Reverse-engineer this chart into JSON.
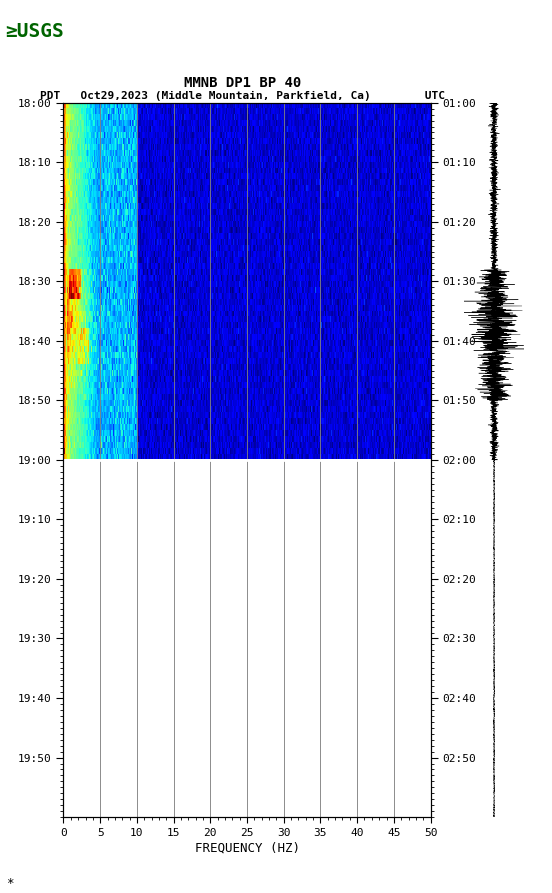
{
  "title_line1": "MMNB DP1 BP 40",
  "title_line2": "PDT   Oct29,2023 (Middle Mountain, Parkfield, Ca)        UTC",
  "xlabel": "FREQUENCY (HZ)",
  "freq_min": 0,
  "freq_max": 50,
  "freq_ticks": [
    0,
    5,
    10,
    15,
    20,
    25,
    30,
    35,
    40,
    45,
    50
  ],
  "time_left_labels": [
    "18:00",
    "18:10",
    "18:20",
    "18:30",
    "18:40",
    "18:50",
    "19:00",
    "19:10",
    "19:20",
    "19:30",
    "19:40",
    "19:50"
  ],
  "time_right_labels": [
    "01:00",
    "01:10",
    "01:20",
    "01:30",
    "01:40",
    "01:50",
    "02:00",
    "02:10",
    "02:20",
    "02:30",
    "02:40",
    "02:50"
  ],
  "n_time_steps": 120,
  "n_freq_steps": 500,
  "vertical_grid_freqs": [
    5,
    10,
    15,
    20,
    25,
    30,
    35,
    40,
    45
  ],
  "bg_color": "white",
  "spectrogram_bg": "#000090",
  "colormap": "jet",
  "waveform_color": "black",
  "fig_width": 5.52,
  "fig_height": 8.93,
  "grid_color": "#808080",
  "divider_color": "white"
}
